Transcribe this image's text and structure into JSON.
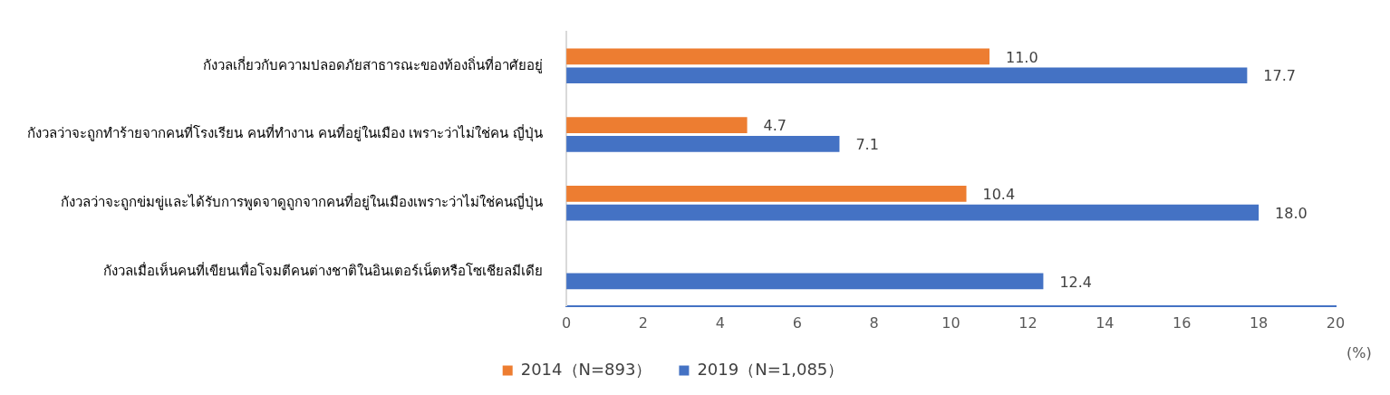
{
  "chart_data": {
    "type": "bar",
    "orientation": "horizontal",
    "xlabel": "(%)",
    "categories": [
      "กังวลเกี่ยวกับความปลอดภัยสาธารณะของท้องถิ่นที่อาศัยอยู่",
      "กังวลว่าจะถูกทำร้ายจากคนที่โรงเรียน คนที่ทำงาน คนที่อยู่ในเมือง เพราะว่าไม่ใช่คน ญี่ปุ่น",
      "กังวลว่าจะถูกข่มขู่และได้รับการพูดจาดูถูกจากคนที่อยู่ในเมืองเพราะว่าไม่ใช่คนญี่ปุ่น",
      "กังวลเมื่อเห็นคนที่เขียนเพื่อโจมตีคนต่างชาติในอินเตอร์เน็ตหรือโซเชียลมีเดีย"
    ],
    "series": [
      {
        "name": "2014（N=893）",
        "color": "#ed7d31",
        "values": [
          11.0,
          4.7,
          10.4,
          null
        ],
        "value_labels": [
          "11.0",
          "4.7",
          "10.4",
          null
        ]
      },
      {
        "name": "2019（N=1,085）",
        "color": "#4472c4",
        "values": [
          17.7,
          7.1,
          18.0,
          12.4
        ],
        "value_labels": [
          "17.7",
          "7.1",
          "18.0",
          "12.4"
        ]
      }
    ],
    "xlim": [
      0,
      20
    ],
    "xticks": [
      0,
      2,
      4,
      6,
      8,
      10,
      12,
      14,
      16,
      18,
      20
    ],
    "grid": false,
    "legend": "bottom"
  }
}
